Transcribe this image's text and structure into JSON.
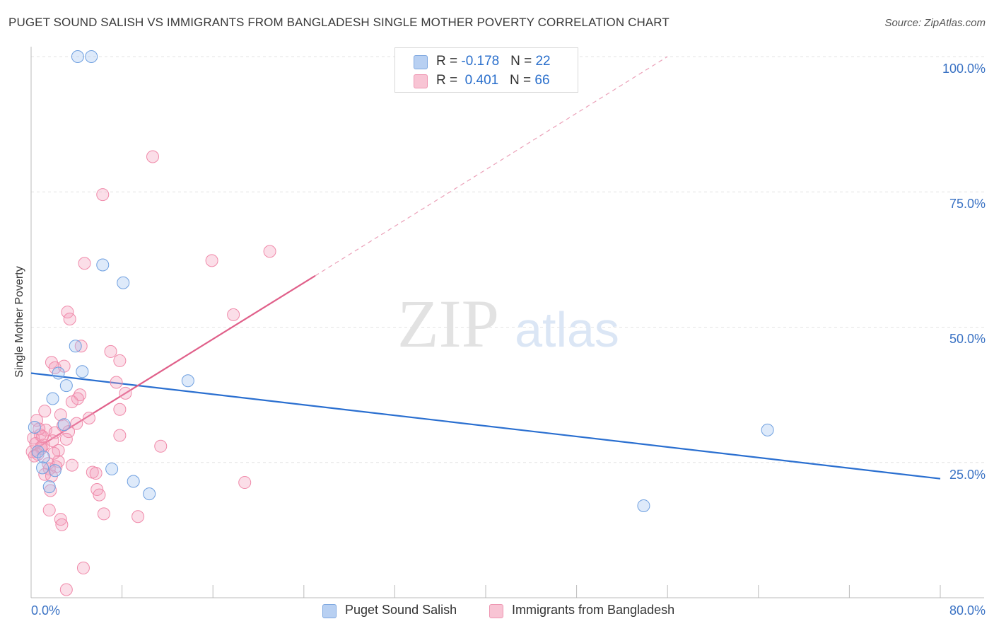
{
  "title": "PUGET SOUND SALISH VS IMMIGRANTS FROM BANGLADESH SINGLE MOTHER POVERTY CORRELATION CHART",
  "source": "Source: ZipAtlas.com",
  "watermark": {
    "zip": "ZIP",
    "atlas": "atlas"
  },
  "legend_top": {
    "row1": {
      "r_label": "R = ",
      "r_value": "-0.178",
      "n_label": "N = ",
      "n_value": "22"
    },
    "row2": {
      "r_label": "R = ",
      "r_value": "0.401",
      "n_label": "N = ",
      "n_value": "66"
    }
  },
  "chart_data": {
    "type": "scatter",
    "title": "PUGET SOUND SALISH VS IMMIGRANTS FROM BANGLADESH SINGLE MOTHER POVERTY CORRELATION CHART",
    "xlabel": "",
    "ylabel": "Single Mother Poverty",
    "xlim": [
      0,
      80
    ],
    "ylim": [
      0,
      100
    ],
    "x_tick_labels": [
      "0.0%",
      "80.0%"
    ],
    "y_tick_labels": [
      "100.0%",
      "75.0%",
      "50.0%",
      "25.0%"
    ],
    "y_ticks": [
      100,
      75,
      50,
      25
    ],
    "grid": true,
    "legend_position": "bottom",
    "colors": {
      "blue": "#6fa0e0",
      "pink": "#f08aaa",
      "blue_line": "#2a6fd0",
      "pink_line": "#e0608a"
    },
    "series": [
      {
        "name": "Puget Sound Salish",
        "color": "#6fa0e0",
        "r": -0.178,
        "n": 22,
        "trend": {
          "x0": 0,
          "y0": 41.5,
          "x1": 80,
          "y1": 22
        },
        "points": [
          [
            4.1,
            100
          ],
          [
            5.3,
            100
          ],
          [
            6.3,
            61.5
          ],
          [
            8.1,
            58.2
          ],
          [
            3.9,
            46.5
          ],
          [
            4.5,
            41.8
          ],
          [
            2.4,
            41.5
          ],
          [
            3.1,
            39.2
          ],
          [
            13.8,
            40.1
          ],
          [
            1.9,
            36.8
          ],
          [
            2.9,
            32.0
          ],
          [
            0.3,
            31.5
          ],
          [
            0.6,
            27.0
          ],
          [
            1.1,
            26.0
          ],
          [
            1.0,
            24.0
          ],
          [
            2.1,
            23.5
          ],
          [
            7.1,
            23.8
          ],
          [
            9.0,
            21.5
          ],
          [
            1.6,
            20.5
          ],
          [
            10.4,
            19.2
          ],
          [
            64.8,
            31.0
          ],
          [
            53.9,
            17.0
          ]
        ]
      },
      {
        "name": "Immigrants from Bangladesh",
        "color": "#f08aaa",
        "r": 0.401,
        "n": 66,
        "trend": {
          "x0": 0,
          "y0": 27,
          "x1": 25,
          "y1": 59.5,
          "dash_x1": 56,
          "dash_y1": 100
        },
        "points": [
          [
            10.7,
            81.5
          ],
          [
            6.3,
            74.5
          ],
          [
            4.7,
            61.8
          ],
          [
            15.9,
            62.3
          ],
          [
            21.0,
            64.0
          ],
          [
            3.2,
            52.8
          ],
          [
            3.4,
            51.5
          ],
          [
            17.8,
            52.3
          ],
          [
            4.4,
            46.5
          ],
          [
            7.0,
            45.5
          ],
          [
            7.8,
            43.8
          ],
          [
            1.8,
            43.5
          ],
          [
            2.1,
            42.5
          ],
          [
            2.9,
            42.8
          ],
          [
            7.5,
            39.8
          ],
          [
            8.3,
            37.8
          ],
          [
            4.3,
            37.5
          ],
          [
            4.1,
            36.8
          ],
          [
            3.6,
            36.2
          ],
          [
            1.2,
            34.5
          ],
          [
            2.6,
            33.8
          ],
          [
            7.8,
            34.8
          ],
          [
            5.1,
            33.2
          ],
          [
            0.5,
            32.8
          ],
          [
            4.0,
            32.2
          ],
          [
            2.8,
            31.8
          ],
          [
            1.3,
            31.0
          ],
          [
            2.1,
            30.5
          ],
          [
            3.3,
            30.7
          ],
          [
            7.8,
            30.0
          ],
          [
            0.8,
            30.1
          ],
          [
            0.2,
            29.5
          ],
          [
            3.1,
            29.3
          ],
          [
            1.9,
            29.0
          ],
          [
            0.4,
            28.5
          ],
          [
            1.1,
            28.2
          ],
          [
            11.4,
            28.0
          ],
          [
            0.9,
            27.6
          ],
          [
            0.1,
            27.0
          ],
          [
            2.4,
            27.2
          ],
          [
            0.6,
            26.5
          ],
          [
            0.3,
            26.2
          ],
          [
            2.4,
            25.2
          ],
          [
            1.5,
            24.8
          ],
          [
            2.2,
            24.2
          ],
          [
            1.6,
            23.8
          ],
          [
            5.4,
            23.2
          ],
          [
            5.7,
            23.0
          ],
          [
            1.2,
            22.8
          ],
          [
            1.8,
            22.5
          ],
          [
            18.8,
            21.3
          ],
          [
            5.8,
            20.0
          ],
          [
            1.7,
            19.8
          ],
          [
            6.0,
            19.0
          ],
          [
            1.6,
            16.2
          ],
          [
            6.4,
            15.5
          ],
          [
            9.4,
            15.0
          ],
          [
            2.6,
            14.5
          ],
          [
            2.7,
            13.5
          ],
          [
            4.6,
            5.5
          ],
          [
            3.1,
            1.5
          ],
          [
            0.9,
            27.9
          ],
          [
            1.0,
            29.8
          ],
          [
            2.0,
            26.7
          ],
          [
            0.7,
            31.2
          ],
          [
            3.6,
            24.5
          ]
        ]
      }
    ]
  },
  "bottom_legend": {
    "item1": "Puget Sound Salish",
    "item2": "Immigrants from Bangladesh"
  }
}
